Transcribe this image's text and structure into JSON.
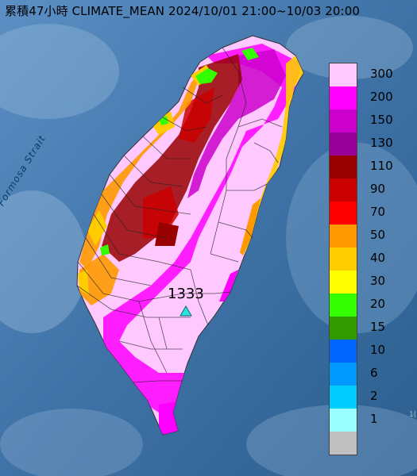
{
  "title": "累積47小時 CLIMATE_MEAN 2024/10/01 21:00~10/03 20:00",
  "sea_label": "Formosa Strait",
  "corner_mark": "1(",
  "max_station": {
    "value": "1333",
    "marker": "triangle-icon",
    "color": "#2fe0e0"
  },
  "legend": [
    {
      "label": "300",
      "color": "#ffc8ff"
    },
    {
      "label": "200",
      "color": "#ff00ff"
    },
    {
      "label": "150",
      "color": "#cc00cc"
    },
    {
      "label": "130",
      "color": "#990099"
    },
    {
      "label": "110",
      "color": "#990000"
    },
    {
      "label": "90",
      "color": "#cc0000"
    },
    {
      "label": "70",
      "color": "#ff0000"
    },
    {
      "label": "50",
      "color": "#ff9900"
    },
    {
      "label": "40",
      "color": "#ffcc00"
    },
    {
      "label": "30",
      "color": "#ffff00"
    },
    {
      "label": "20",
      "color": "#33ff00"
    },
    {
      "label": "15",
      "color": "#339900"
    },
    {
      "label": "10",
      "color": "#0066ff"
    },
    {
      "label": "6",
      "color": "#0099ff"
    },
    {
      "label": "2",
      "color": "#00ccff"
    },
    {
      "label": "1",
      "color": "#99ffff"
    },
    {
      "label": "",
      "color": "#c0c0c0"
    }
  ]
}
